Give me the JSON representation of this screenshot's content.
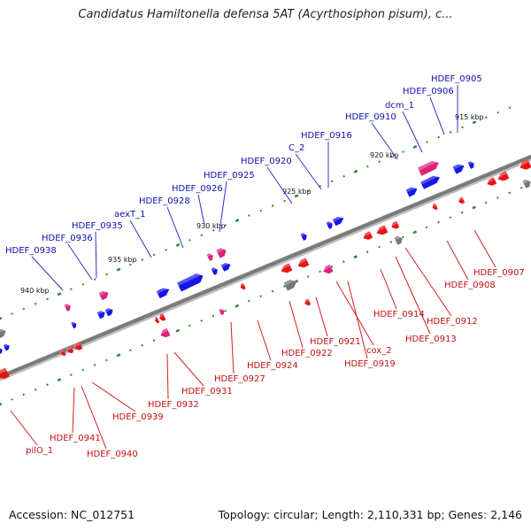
{
  "title": "Candidatus Hamiltonella defensa 5AT (Acyrthosiphon pisum), c...",
  "footer": {
    "accession": "Accession: NC_012751",
    "summary": "Topology: circular; Length: 2,110,331 bp; Genes: 2,146"
  },
  "colors": {
    "forward_gene": "#1515e8",
    "reverse_gene": "#e81515",
    "rna_gene": "#e0207a",
    "other_gene": "#777777",
    "backbone": "#7a7a7a",
    "ticks": "#2a8a2a",
    "forward_label": "#1010b0",
    "reverse_label": "#c01010"
  },
  "kbp_markers": [
    "915 kbp",
    "920 kbp",
    "925 kbp",
    "930 kbp",
    "935 kbp",
    "940 kbp"
  ],
  "forward_labels": [
    "HDEF_0905",
    "HDEF_0906",
    "dcm_1",
    "HDEF_0910",
    "HDEF_0916",
    "C_2",
    "HDEF_0920",
    "HDEF_0925",
    "HDEF_0926",
    "HDEF_0928",
    "aexT_1",
    "HDEF_0935",
    "HDEF_0936",
    "HDEF_0938"
  ],
  "reverse_labels": [
    "HDEF_0907",
    "HDEF_0908",
    "HDEF_0912",
    "HDEF_0913",
    "HDEF_0914",
    "cox_2",
    "HDEF_0919",
    "HDEF_0921",
    "HDEF_0922",
    "HDEF_0924",
    "HDEF_0927",
    "HDEF_0931",
    "HDEF_0932",
    "HDEF_0939",
    "HDEF_0940",
    "HDEF_0941",
    "pilO_1"
  ]
}
